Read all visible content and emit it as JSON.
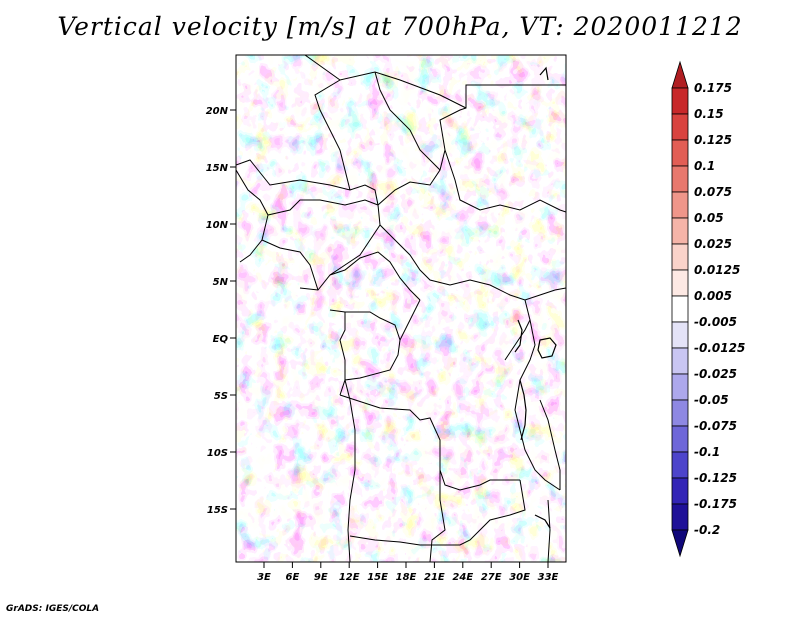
{
  "title": "Vertical velocity [m/s] at 700hPa, VT: 2020011212",
  "credit": "GrADS: IGES/COLA",
  "map": {
    "lat_labels": [
      "20N",
      "15N",
      "10N",
      "5N",
      "EQ",
      "5S",
      "10S",
      "15S"
    ],
    "lon_labels": [
      "3E",
      "6E",
      "9E",
      "12E",
      "15E",
      "18E",
      "21E",
      "24E",
      "27E",
      "30E",
      "33E"
    ]
  },
  "colorbar": {
    "labels": [
      "0.175",
      "0.15",
      "0.125",
      "0.1",
      "0.075",
      "0.05",
      "0.025",
      "0.0125",
      "0.005",
      "-0.005",
      "-0.0125",
      "-0.025",
      "-0.05",
      "-0.075",
      "-0.1",
      "-0.125",
      "-0.175",
      "-0.2"
    ],
    "colors": [
      "#b01e22",
      "#c8282a",
      "#d9433f",
      "#e25e55",
      "#e8786d",
      "#ef968a",
      "#f5b4a8",
      "#fad3ca",
      "#fde9e4",
      "#ffffff",
      "#e4e3f7",
      "#c9c6f2",
      "#ada8ec",
      "#8e88e3",
      "#6e66d8",
      "#4d44cb",
      "#3325b6",
      "#1f1198",
      "#10087a"
    ]
  },
  "colors": {
    "positive": "#e0605a",
    "negative": "#6a62e0"
  }
}
